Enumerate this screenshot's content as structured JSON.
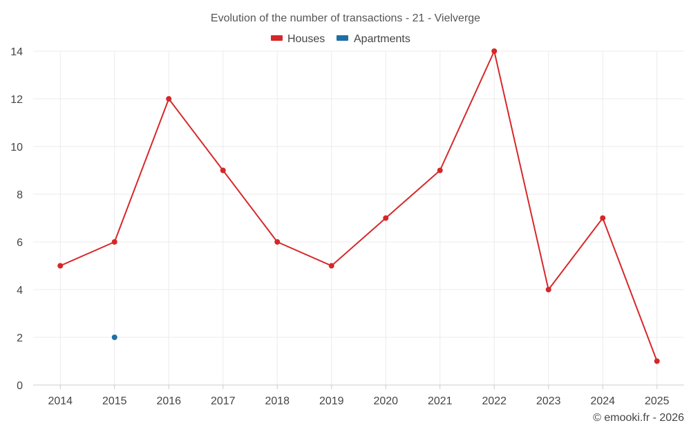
{
  "chart_data": {
    "type": "line",
    "title": "Evolution of the number of transactions - 21 - Vielverge",
    "categories": [
      "2014",
      "2015",
      "2016",
      "2017",
      "2018",
      "2019",
      "2020",
      "2021",
      "2022",
      "2023",
      "2024",
      "2025"
    ],
    "series": [
      {
        "name": "Houses",
        "color": "#d62728",
        "values": [
          5,
          6,
          12,
          9,
          6,
          5,
          7,
          9,
          14,
          4,
          7,
          1
        ]
      },
      {
        "name": "Apartments",
        "color": "#1f6fa5",
        "values": [
          null,
          2,
          null,
          null,
          null,
          null,
          null,
          null,
          null,
          null,
          null,
          null
        ]
      }
    ],
    "ylim": [
      0,
      14
    ],
    "yticks": [
      0,
      2,
      4,
      6,
      8,
      10,
      12,
      14
    ],
    "xlabel": "",
    "ylabel": "",
    "grid": true,
    "legend_position": "top-center"
  },
  "credit": "© emooki.fr - 2026"
}
